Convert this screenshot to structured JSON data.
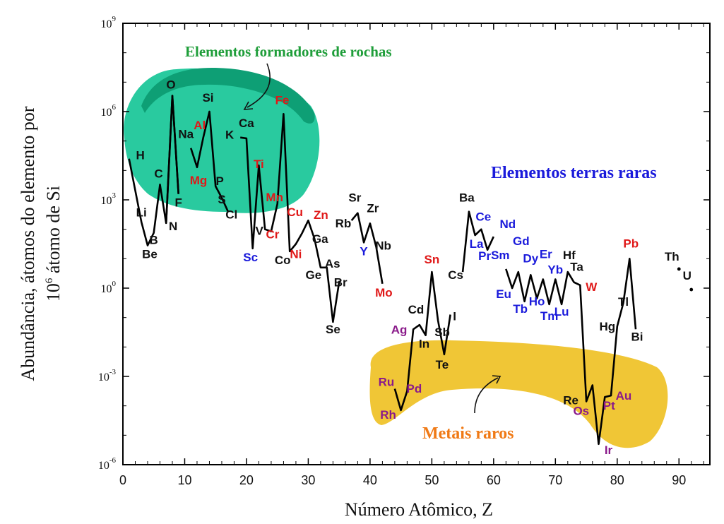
{
  "chart_data": {
    "type": "line",
    "xlabel": "Número Atômico, Z",
    "ylabel_line1": "Abundância, átomos do elemento por",
    "ylabel_line2": "átomo de Si",
    "ylabel_line2_prefix": "10",
    "ylabel_line2_sup": "6",
    "xlim": [
      0,
      95
    ],
    "ylim_log10": [
      -6,
      9
    ],
    "y_scale": "log",
    "x_ticks": [
      0,
      10,
      20,
      30,
      40,
      50,
      60,
      70,
      80,
      90
    ],
    "y_ticks": [
      {
        "base": "10",
        "exp": "9",
        "log": 9
      },
      {
        "base": "10",
        "exp": "6",
        "log": 6
      },
      {
        "base": "10",
        "exp": "3",
        "log": 3
      },
      {
        "base": "10",
        "exp": "0",
        "log": 0
      },
      {
        "base": "10",
        "exp": "-3",
        "log": -3
      },
      {
        "base": "10",
        "exp": "-6",
        "log": -6
      }
    ],
    "series_segments": [
      [
        [
          1,
          4.4
        ],
        [
          3,
          2.25
        ],
        [
          4,
          1.45
        ],
        [
          5,
          1.88
        ],
        [
          6,
          3.52
        ],
        [
          7,
          2.21
        ],
        [
          8,
          6.54
        ],
        [
          9,
          3.2
        ],
        [
          9.0,
          3.2
        ]
      ],
      [
        [
          7.0,
          2.21
        ],
        [
          8.0,
          6.54
        ],
        [
          9.0,
          3.2
        ]
      ],
      [
        [
          11,
          4.76
        ],
        [
          12,
          4.11
        ],
        [
          13,
          5.11
        ],
        [
          14,
          6.0
        ],
        [
          15,
          3.46
        ],
        [
          16,
          3.07
        ],
        [
          17,
          2.61
        ],
        [
          17,
          2.6
        ]
      ],
      [
        [
          19,
          5.12
        ],
        [
          20,
          5.09
        ],
        [
          21,
          1.35
        ],
        [
          22,
          4.17
        ],
        [
          23,
          2.0
        ],
        [
          24,
          1.93
        ],
        [
          25,
          2.86
        ],
        [
          26,
          5.92
        ],
        [
          27,
          1.25
        ],
        [
          28,
          1.5
        ],
        [
          29,
          1.87
        ],
        [
          30,
          2.3
        ],
        [
          31,
          1.68
        ],
        [
          32,
          0.7
        ],
        [
          33,
          0.7
        ],
        [
          34,
          -1.15
        ],
        [
          35,
          0.22
        ],
        [
          35,
          0.2
        ]
      ],
      [
        [
          37,
          2.3
        ],
        [
          38,
          2.55
        ],
        [
          39,
          1.55
        ],
        [
          40,
          2.2
        ],
        [
          41,
          1.4
        ],
        [
          42,
          0.15
        ]
      ],
      [
        [
          44,
          -3.42
        ],
        [
          45,
          -4.15
        ],
        [
          46,
          -3.5
        ],
        [
          47,
          -1.4
        ],
        [
          48,
          -1.25
        ],
        [
          49,
          -1.6
        ],
        [
          50,
          0.55
        ],
        [
          51,
          -1.1
        ],
        [
          52,
          -2.25
        ],
        [
          53,
          -0.9
        ]
      ],
      [
        [
          55,
          0.55
        ],
        [
          56,
          2.6
        ],
        [
          57,
          1.8
        ],
        [
          58,
          2.0
        ],
        [
          59,
          1.3
        ],
        [
          60,
          1.75
        ]
      ],
      [
        [
          62,
          0.65
        ],
        [
          63,
          0.0
        ],
        [
          64,
          0.55
        ],
        [
          65,
          -0.45
        ],
        [
          66,
          0.45
        ],
        [
          67,
          -0.35
        ],
        [
          68,
          0.3
        ],
        [
          69,
          -0.55
        ],
        [
          70,
          0.3
        ],
        [
          71,
          -0.55
        ],
        [
          72,
          0.55
        ],
        [
          73,
          0.2
        ],
        [
          74,
          0.1
        ],
        [
          75,
          -3.85
        ],
        [
          76,
          -3.3
        ],
        [
          77,
          -5.3
        ],
        [
          78,
          -3.7
        ],
        [
          79,
          -3.65
        ],
        [
          80,
          -1.3
        ],
        [
          81,
          -0.5
        ],
        [
          82,
          1.0
        ],
        [
          83,
          -1.4
        ]
      ]
    ],
    "isolated_points": [
      {
        "x": 90,
        "log10y": 0.65
      },
      {
        "x": 92,
        "log10y": -0.05
      }
    ],
    "element_labels": [
      {
        "text": "H",
        "x": 1,
        "log10y": 4.5,
        "dx": 16,
        "dy": 5,
        "group": "normal"
      },
      {
        "text": "Li",
        "x": 3,
        "log10y": 2.25,
        "dx": 0,
        "dy": -8,
        "group": "normal"
      },
      {
        "text": "Be",
        "x": 4,
        "log10y": 1.45,
        "dx": 3,
        "dy": 18,
        "group": "normal"
      },
      {
        "text": "B",
        "x": 5,
        "log10y": 1.88,
        "dx": 0,
        "dy": 16,
        "group": "normal"
      },
      {
        "text": "C",
        "x": 6,
        "log10y": 3.52,
        "dx": -2,
        "dy": -10,
        "group": "normal"
      },
      {
        "text": "N",
        "x": 7,
        "log10y": 2.21,
        "dx": 10,
        "dy": 10,
        "group": "normal"
      },
      {
        "text": "O",
        "x": 8,
        "log10y": 6.54,
        "dx": -2,
        "dy": -10,
        "group": "normal"
      },
      {
        "text": "F",
        "x": 9,
        "log10y": 3.2,
        "dx": 0,
        "dy": 18,
        "group": "normal"
      },
      {
        "text": "Na",
        "x": 11,
        "log10y": 4.76,
        "dx": -7,
        "dy": -14,
        "group": "normal"
      },
      {
        "text": "Mg",
        "x": 12,
        "log10y": 4.11,
        "dx": 2,
        "dy": 24,
        "group": "metal"
      },
      {
        "text": "Al",
        "x": 13,
        "log10y": 5.11,
        "dx": -5,
        "dy": -12,
        "group": "metal"
      },
      {
        "text": "Si",
        "x": 14,
        "log10y": 6.0,
        "dx": -2,
        "dy": -14,
        "group": "normal"
      },
      {
        "text": "P",
        "x": 15,
        "log10y": 3.46,
        "dx": 6,
        "dy": -2,
        "group": "normal"
      },
      {
        "text": "S",
        "x": 16,
        "log10y": 3.07,
        "dx": 0,
        "dy": 8,
        "group": "normal"
      },
      {
        "text": "Cl",
        "x": 17,
        "log10y": 2.6,
        "dx": 5,
        "dy": 10,
        "group": "normal"
      },
      {
        "text": "K",
        "x": 19,
        "log10y": 5.12,
        "dx": -15,
        "dy": 2,
        "group": "normal"
      },
      {
        "text": "Ca",
        "x": 20,
        "log10y": 5.09,
        "dx": 0,
        "dy": -16,
        "group": "normal"
      },
      {
        "text": "Sc",
        "x": 21,
        "log10y": 1.35,
        "dx": -3,
        "dy": 18,
        "group": "ree"
      },
      {
        "text": "Ti",
        "x": 22,
        "log10y": 4.17,
        "dx": 0,
        "dy": 4,
        "group": "metal"
      },
      {
        "text": "V",
        "x": 23,
        "log10y": 2.0,
        "dx": -8,
        "dy": 8,
        "group": "normal"
      },
      {
        "text": "Cr",
        "x": 24,
        "log10y": 1.93,
        "dx": 2,
        "dy": 10,
        "group": "metal"
      },
      {
        "text": "Mn",
        "x": 25,
        "log10y": 2.86,
        "dx": -4,
        "dy": -4,
        "group": "metal"
      },
      {
        "text": "Fe",
        "x": 26,
        "log10y": 5.92,
        "dx": -2,
        "dy": -14,
        "group": "metal"
      },
      {
        "text": "Co",
        "x": 27,
        "log10y": 1.25,
        "dx": -10,
        "dy": 18,
        "group": "normal"
      },
      {
        "text": "Ni",
        "x": 28,
        "log10y": 1.5,
        "dx": 0,
        "dy": 20,
        "group": "metal"
      },
      {
        "text": "Cu",
        "x": 29,
        "log10y": 1.87,
        "dx": -10,
        "dy": -24,
        "group": "metal"
      },
      {
        "text": "Zn",
        "x": 30,
        "log10y": 2.3,
        "dx": 18,
        "dy": -2,
        "group": "metal"
      },
      {
        "text": "Ga",
        "x": 31,
        "log10y": 1.68,
        "dx": 8,
        "dy": 6,
        "group": "normal"
      },
      {
        "text": "Ge",
        "x": 32,
        "log10y": 0.7,
        "dx": -10,
        "dy": 16,
        "group": "normal"
      },
      {
        "text": "As",
        "x": 33,
        "log10y": 0.7,
        "dx": 8,
        "dy": 0,
        "group": "normal"
      },
      {
        "text": "Se",
        "x": 34,
        "log10y": -1.15,
        "dx": 0,
        "dy": 16,
        "group": "normal"
      },
      {
        "text": "Br",
        "x": 35,
        "log10y": 0.2,
        "dx": 2,
        "dy": 6,
        "group": "normal"
      },
      {
        "text": "Rb",
        "x": 36,
        "log10y": 2.3,
        "dx": -3,
        "dy": 10,
        "group": "normal"
      },
      {
        "text": "Sr",
        "x": 38,
        "log10y": 2.55,
        "dx": -4,
        "dy": -16,
        "group": "normal"
      },
      {
        "text": "Y",
        "x": 39,
        "log10y": 1.55,
        "dx": 0,
        "dy": 18,
        "group": "ree"
      },
      {
        "text": "Zr",
        "x": 40,
        "log10y": 2.2,
        "dx": 4,
        "dy": -16,
        "group": "normal"
      },
      {
        "text": "Nb",
        "x": 41,
        "log10y": 1.4,
        "dx": 10,
        "dy": 4,
        "group": "normal"
      },
      {
        "text": "Mo",
        "x": 42,
        "log10y": 0.15,
        "dx": 2,
        "dy": 18,
        "group": "metal"
      },
      {
        "text": "Ru",
        "x": 44,
        "log10y": -3.42,
        "dx": -12,
        "dy": -4,
        "group": "precious"
      },
      {
        "text": "Rh",
        "x": 45,
        "log10y": -4.15,
        "dx": -18,
        "dy": 12,
        "group": "precious"
      },
      {
        "text": "Pd",
        "x": 46,
        "log10y": -3.5,
        "dx": 10,
        "dy": 2,
        "group": "precious"
      },
      {
        "text": "Ag",
        "x": 47,
        "log10y": -1.4,
        "dx": -20,
        "dy": 6,
        "group": "precious"
      },
      {
        "text": "Cd",
        "x": 48,
        "log10y": -1.25,
        "dx": -5,
        "dy": -16,
        "group": "normal"
      },
      {
        "text": "In",
        "x": 49,
        "log10y": -1.6,
        "dx": -2,
        "dy": 18,
        "group": "normal"
      },
      {
        "text": "Sn",
        "x": 50,
        "log10y": 0.55,
        "dx": 0,
        "dy": -12,
        "group": "metal"
      },
      {
        "text": "Sb",
        "x": 51,
        "log10y": -1.1,
        "dx": 6,
        "dy": 22,
        "group": "normal"
      },
      {
        "text": "Te",
        "x": 52,
        "log10y": -2.25,
        "dx": -3,
        "dy": 20,
        "group": "normal"
      },
      {
        "text": "I",
        "x": 53,
        "log10y": -0.9,
        "dx": 6,
        "dy": 8,
        "group": "normal"
      },
      {
        "text": "Cs",
        "x": 55,
        "log10y": 0.55,
        "dx": -10,
        "dy": 10,
        "group": "normal"
      },
      {
        "text": "Ba",
        "x": 56,
        "log10y": 2.6,
        "dx": -3,
        "dy": -14,
        "group": "normal"
      },
      {
        "text": "La",
        "x": 57,
        "log10y": 1.8,
        "dx": 2,
        "dy": 18,
        "group": "ree"
      },
      {
        "text": "Ce",
        "x": 58,
        "log10y": 2.0,
        "dx": 3,
        "dy": -12,
        "group": "ree"
      },
      {
        "text": "Pr",
        "x": 59,
        "log10y": 1.3,
        "dx": -4,
        "dy": 14,
        "group": "ree"
      },
      {
        "text": "Nd",
        "x": 60,
        "log10y": 1.75,
        "dx": 20,
        "dy": -12,
        "group": "ree"
      },
      {
        "text": "Sm",
        "x": 62,
        "log10y": 0.65,
        "dx": -8,
        "dy": -14,
        "group": "ree"
      },
      {
        "text": "Eu",
        "x": 63,
        "log10y": 0.0,
        "dx": -12,
        "dy": 14,
        "group": "ree"
      },
      {
        "text": "Gd",
        "x": 64,
        "log10y": 0.55,
        "dx": 4,
        "dy": -38,
        "group": "ree"
      },
      {
        "text": "Tb",
        "x": 65,
        "log10y": -0.45,
        "dx": -6,
        "dy": 16,
        "group": "ree"
      },
      {
        "text": "Dy",
        "x": 66,
        "log10y": 0.45,
        "dx": 0,
        "dy": -18,
        "group": "ree"
      },
      {
        "text": "Ho",
        "x": 67,
        "log10y": -0.35,
        "dx": 0,
        "dy": 10,
        "group": "ree"
      },
      {
        "text": "Er",
        "x": 68,
        "log10y": 0.3,
        "dx": 4,
        "dy": -30,
        "group": "ree"
      },
      {
        "text": "Tm",
        "x": 69,
        "log10y": -0.55,
        "dx": 0,
        "dy": 22,
        "group": "ree"
      },
      {
        "text": "Yb",
        "x": 70,
        "log10y": 0.3,
        "dx": 0,
        "dy": -8,
        "group": "ree"
      },
      {
        "text": "Lu",
        "x": 71,
        "log10y": -0.55,
        "dx": 0,
        "dy": 16,
        "group": "ree"
      },
      {
        "text": "Hf",
        "x": 72,
        "log10y": 0.55,
        "dx": 2,
        "dy": -18,
        "group": "normal"
      },
      {
        "text": "Ta",
        "x": 73,
        "log10y": 0.2,
        "dx": 4,
        "dy": -16,
        "group": "normal"
      },
      {
        "text": "W",
        "x": 74,
        "log10y": 0.1,
        "dx": 16,
        "dy": 8,
        "group": "metal"
      },
      {
        "text": "Re",
        "x": 75,
        "log10y": -3.85,
        "dx": -22,
        "dy": 4,
        "group": "normal"
      },
      {
        "text": "Os",
        "x": 76,
        "log10y": -3.3,
        "dx": -16,
        "dy": 42,
        "group": "precious"
      },
      {
        "text": "Ir",
        "x": 77,
        "log10y": -5.3,
        "dx": 14,
        "dy": 14,
        "group": "precious"
      },
      {
        "text": "Pt",
        "x": 78,
        "log10y": -3.7,
        "dx": 6,
        "dy": 18,
        "group": "precious"
      },
      {
        "text": "Au",
        "x": 79,
        "log10y": -3.65,
        "dx": 18,
        "dy": 6,
        "group": "precious"
      },
      {
        "text": "Hg",
        "x": 80,
        "log10y": -1.3,
        "dx": -14,
        "dy": 6,
        "group": "normal"
      },
      {
        "text": "Tl",
        "x": 81,
        "log10y": -0.5,
        "dx": 0,
        "dy": 4,
        "group": "normal"
      },
      {
        "text": "Pb",
        "x": 82,
        "log10y": 1.0,
        "dx": 2,
        "dy": -16,
        "group": "metal"
      },
      {
        "text": "Bi",
        "x": 83,
        "log10y": -1.4,
        "dx": 2,
        "dy": 16,
        "group": "normal"
      },
      {
        "text": "Th",
        "x": 90,
        "log10y": 0.65,
        "dx": -10,
        "dy": -12,
        "group": "normal"
      },
      {
        "text": "U",
        "x": 92,
        "log10y": -0.05,
        "dx": -6,
        "dy": -14,
        "group": "normal"
      }
    ],
    "annotations": {
      "rock_forming": "Elementos formadores de rochas",
      "rare_earths": "Elementos terras raras",
      "rare_metals": "Metais raros"
    },
    "colors": {
      "rock_region": "#1dc79a",
      "rock_region_dark": "#0e9f75",
      "rare_metal_region": "#f0c636",
      "rock_text": "#1f9e3a",
      "ree_text": "#1a1adb",
      "metal_text": "#e01818",
      "precious_text": "#8a1a8a",
      "rare_metal_text": "#f07a16",
      "normal_text": "#111111",
      "line": "#000000"
    }
  }
}
